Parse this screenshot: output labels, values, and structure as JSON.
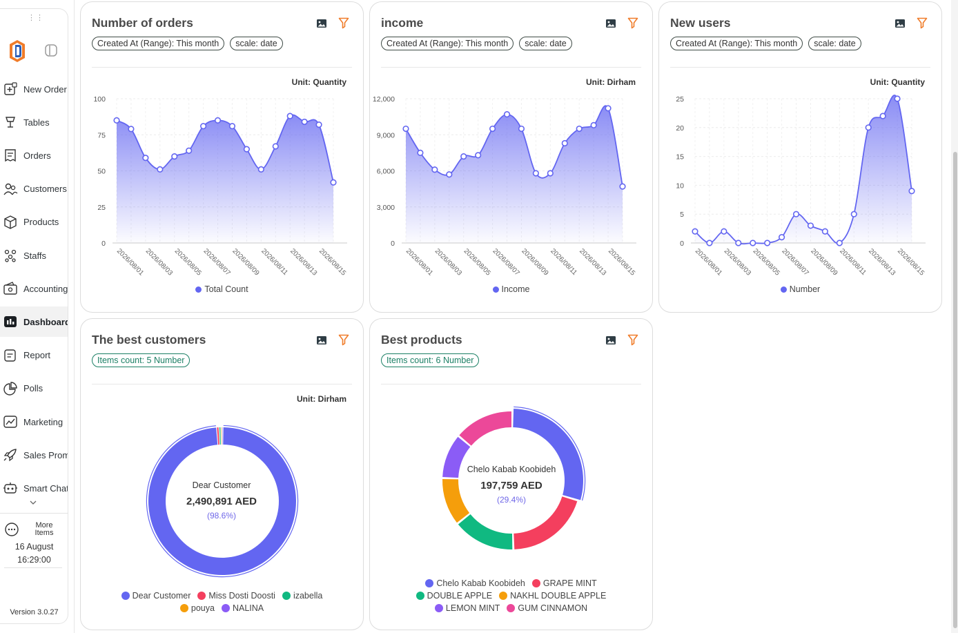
{
  "sidebar": {
    "items": [
      {
        "id": "new-order",
        "label": "New Order",
        "icon": "new-order-icon"
      },
      {
        "id": "tables",
        "label": "Tables",
        "icon": "table-lamp-icon"
      },
      {
        "id": "orders",
        "label": "Orders",
        "icon": "receipt-icon"
      },
      {
        "id": "customers",
        "label": "Customers",
        "icon": "users-icon"
      },
      {
        "id": "products",
        "label": "Products",
        "icon": "box-icon"
      },
      {
        "id": "staffs",
        "label": "Staffs",
        "icon": "team-icon"
      },
      {
        "id": "accounting",
        "label": "Accounting",
        "icon": "wallet-icon"
      },
      {
        "id": "dashboard",
        "label": "Dashboard",
        "icon": "dashboard-icon",
        "active": true
      },
      {
        "id": "report",
        "label": "Report",
        "icon": "report-icon"
      },
      {
        "id": "polls",
        "label": "Polls",
        "icon": "pie-icon"
      },
      {
        "id": "marketing",
        "label": "Marketing",
        "icon": "trend-icon"
      },
      {
        "id": "sales-promotion",
        "label": "Sales Promotion",
        "icon": "rocket-icon"
      },
      {
        "id": "smart-chat",
        "label": "Smart Chat",
        "icon": "robot-icon"
      }
    ],
    "more_items_label": "More Items",
    "clock_date": "16 August",
    "clock_time": "16:29:00",
    "version": "Version 3.0.27"
  },
  "colors": {
    "accent": "#6366f1",
    "filter_icon": "#f07c2a",
    "chip_green": "#1a7f64"
  },
  "cards": {
    "orders": {
      "title": "Number of orders",
      "chips": [
        "Created At (Range): This month",
        "scale: date"
      ],
      "unit": "Unit: Quantity",
      "legend": "Total Count"
    },
    "income": {
      "title": "income",
      "chips": [
        "Created At (Range): This month",
        "scale: date"
      ],
      "unit": "Unit: Dirham",
      "legend": "Income"
    },
    "users": {
      "title": "New users",
      "chips": [
        "Created At (Range): This month",
        "scale: date"
      ],
      "unit": "Unit: Quantity",
      "legend": "Number"
    },
    "customers": {
      "title": "The best customers",
      "chip": "Items count: 5 Number",
      "unit": "Unit: Dirham",
      "center_name": "Dear Customer",
      "center_value": "2,490,891 AED",
      "center_pct": "(98.6%)"
    },
    "products": {
      "title": "Best products",
      "chip": "Items count: 6 Number",
      "center_name": "Chelo Kabab Koobideh",
      "center_value": "197,759 AED",
      "center_pct": "(29.4%)"
    }
  },
  "chart_data": [
    {
      "id": "orders",
      "type": "area",
      "title": "Number of orders",
      "x": [
        "2026/08/01",
        "2026/08/02",
        "2026/08/03",
        "2026/08/04",
        "2026/08/05",
        "2026/08/06",
        "2026/08/07",
        "2026/08/08",
        "2026/08/09",
        "2026/08/10",
        "2026/08/11",
        "2026/08/12",
        "2026/08/13",
        "2026/08/14",
        "2026/08/15",
        "2026/08/16"
      ],
      "x_tick_labels": [
        "2026/08/01",
        "2026/08/03",
        "2026/08/05",
        "2026/08/07",
        "2026/08/09",
        "2026/08/11",
        "2026/08/13",
        "2026/08/15"
      ],
      "series": [
        {
          "name": "Total Count",
          "values": [
            85,
            79,
            59,
            51,
            60,
            64,
            81,
            85,
            81,
            65,
            51,
            67,
            88,
            84,
            82,
            42
          ]
        }
      ],
      "yticks": [
        0,
        25,
        50,
        75,
        100
      ],
      "ytick_labels": [
        "0",
        "25",
        "50",
        "75",
        "100"
      ],
      "ylim": [
        0,
        100
      ],
      "grid": true,
      "legend": "bottom"
    },
    {
      "id": "income",
      "type": "area",
      "title": "income",
      "x": [
        "2026/08/01",
        "2026/08/02",
        "2026/08/03",
        "2026/08/04",
        "2026/08/05",
        "2026/08/06",
        "2026/08/07",
        "2026/08/08",
        "2026/08/09",
        "2026/08/10",
        "2026/08/11",
        "2026/08/12",
        "2026/08/13",
        "2026/08/14",
        "2026/08/15",
        "2026/08/16"
      ],
      "x_tick_labels": [
        "2026/08/01",
        "2026/08/03",
        "2026/08/05",
        "2026/08/07",
        "2026/08/09",
        "2026/08/11",
        "2026/08/13",
        "2026/08/15"
      ],
      "series": [
        {
          "name": "Income",
          "values": [
            9500,
            7500,
            6100,
            5700,
            7200,
            7300,
            9500,
            10700,
            9500,
            5800,
            5800,
            8300,
            9500,
            9800,
            11200,
            4700
          ]
        }
      ],
      "yticks": [
        0,
        3000,
        6000,
        9000,
        12000
      ],
      "ytick_labels": [
        "0",
        "3,000",
        "6,000",
        "9,000",
        "12,000"
      ],
      "ylim": [
        0,
        12000
      ],
      "grid": true,
      "legend": "bottom"
    },
    {
      "id": "users",
      "type": "area",
      "title": "New users",
      "x": [
        "2026/08/01",
        "2026/08/02",
        "2026/08/03",
        "2026/08/04",
        "2026/08/05",
        "2026/08/06",
        "2026/08/07",
        "2026/08/08",
        "2026/08/09",
        "2026/08/10",
        "2026/08/11",
        "2026/08/12",
        "2026/08/13",
        "2026/08/14",
        "2026/08/15",
        "2026/08/16"
      ],
      "x_tick_labels": [
        "2026/08/01",
        "2026/08/03",
        "2026/08/05",
        "2026/08/07",
        "2026/08/09",
        "2026/08/11",
        "2026/08/13",
        "2026/08/15"
      ],
      "series": [
        {
          "name": "Number",
          "values": [
            2,
            0,
            2,
            0,
            0,
            0,
            1,
            5,
            3,
            2,
            0,
            5,
            20,
            22,
            25,
            9
          ]
        }
      ],
      "yticks": [
        0,
        5,
        10,
        15,
        20,
        25
      ],
      "ytick_labels": [
        "0",
        "5",
        "10",
        "15",
        "20",
        "25"
      ],
      "ylim": [
        0,
        25
      ],
      "grid": true,
      "legend": "bottom"
    },
    {
      "id": "customers",
      "type": "pie",
      "title": "The best customers",
      "categories": [
        "Dear Customer",
        "Miss Dosti Doosti",
        "izabella",
        "pouya",
        "NALINA"
      ],
      "values": [
        2490891,
        13000,
        10000,
        7000,
        5000
      ],
      "colors": [
        "#6366f1",
        "#f43f5e",
        "#10b981",
        "#f59e0b",
        "#8b5cf6"
      ],
      "legend": "bottom"
    },
    {
      "id": "products",
      "type": "pie",
      "title": "Best products",
      "categories": [
        "Chelo Kabab Koobideh",
        "GRAPE MINT",
        "DOUBLE APPLE",
        "NAKHL DOUBLE APPLE",
        "LEMON MINT",
        "GUM CINNAMON"
      ],
      "values": [
        197759,
        134000,
        99000,
        76000,
        71000,
        95000
      ],
      "colors": [
        "#6366f1",
        "#f43f5e",
        "#10b981",
        "#f59e0b",
        "#8b5cf6",
        "#ec4899"
      ],
      "legend": "bottom"
    }
  ]
}
